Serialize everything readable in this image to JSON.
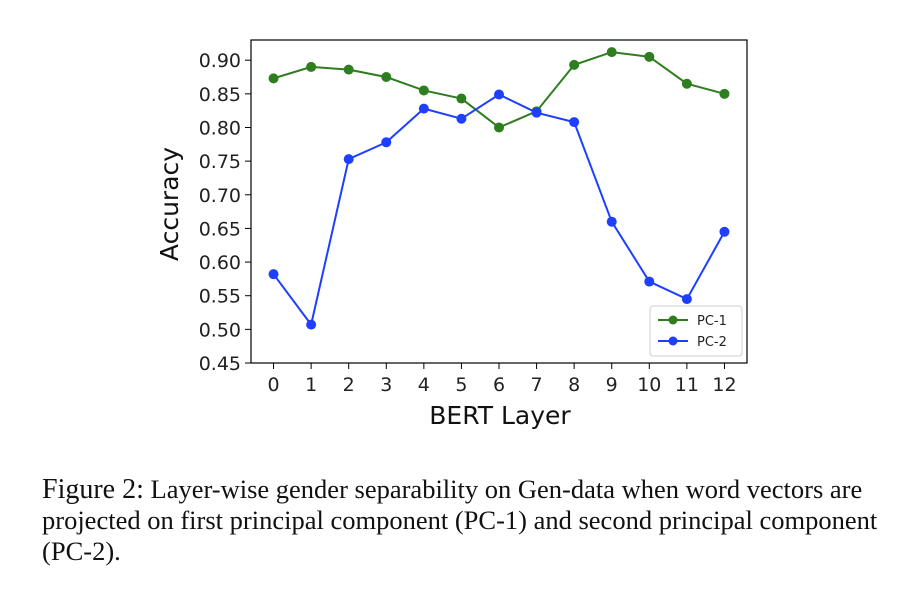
{
  "chart_data": {
    "type": "line",
    "xlabel": "BERT Layer",
    "ylabel": "Accuracy",
    "x": [
      0,
      1,
      2,
      3,
      4,
      5,
      6,
      7,
      8,
      9,
      10,
      11,
      12
    ],
    "xticks": [
      "0",
      "1",
      "2",
      "3",
      "4",
      "5",
      "6",
      "7",
      "8",
      "9",
      "10",
      "11",
      "12"
    ],
    "yticks": [
      "0.45",
      "0.50",
      "0.55",
      "0.60",
      "0.65",
      "0.70",
      "0.75",
      "0.80",
      "0.85",
      "0.90"
    ],
    "ylim": [
      0.45,
      0.93
    ],
    "xlim": [
      -0.6,
      12.6
    ],
    "grid": false,
    "legend_position": "bottom-right",
    "series": [
      {
        "name": "PC-1",
        "color": "#2e7d1e",
        "values": [
          0.873,
          0.89,
          0.886,
          0.875,
          0.855,
          0.843,
          0.8,
          0.824,
          0.893,
          0.912,
          0.905,
          0.865,
          0.85
        ]
      },
      {
        "name": "PC-2",
        "color": "#1f3fff",
        "values": [
          0.582,
          0.507,
          0.753,
          0.778,
          0.828,
          0.813,
          0.849,
          0.822,
          0.808,
          0.66,
          0.571,
          0.545,
          0.645
        ]
      }
    ]
  },
  "caption": {
    "label": "Figure 2:",
    "text": " Layer-wise gender separability on Gen-data when word vectors are projected on first principal component (PC-1) and second principal component (PC-2)."
  }
}
